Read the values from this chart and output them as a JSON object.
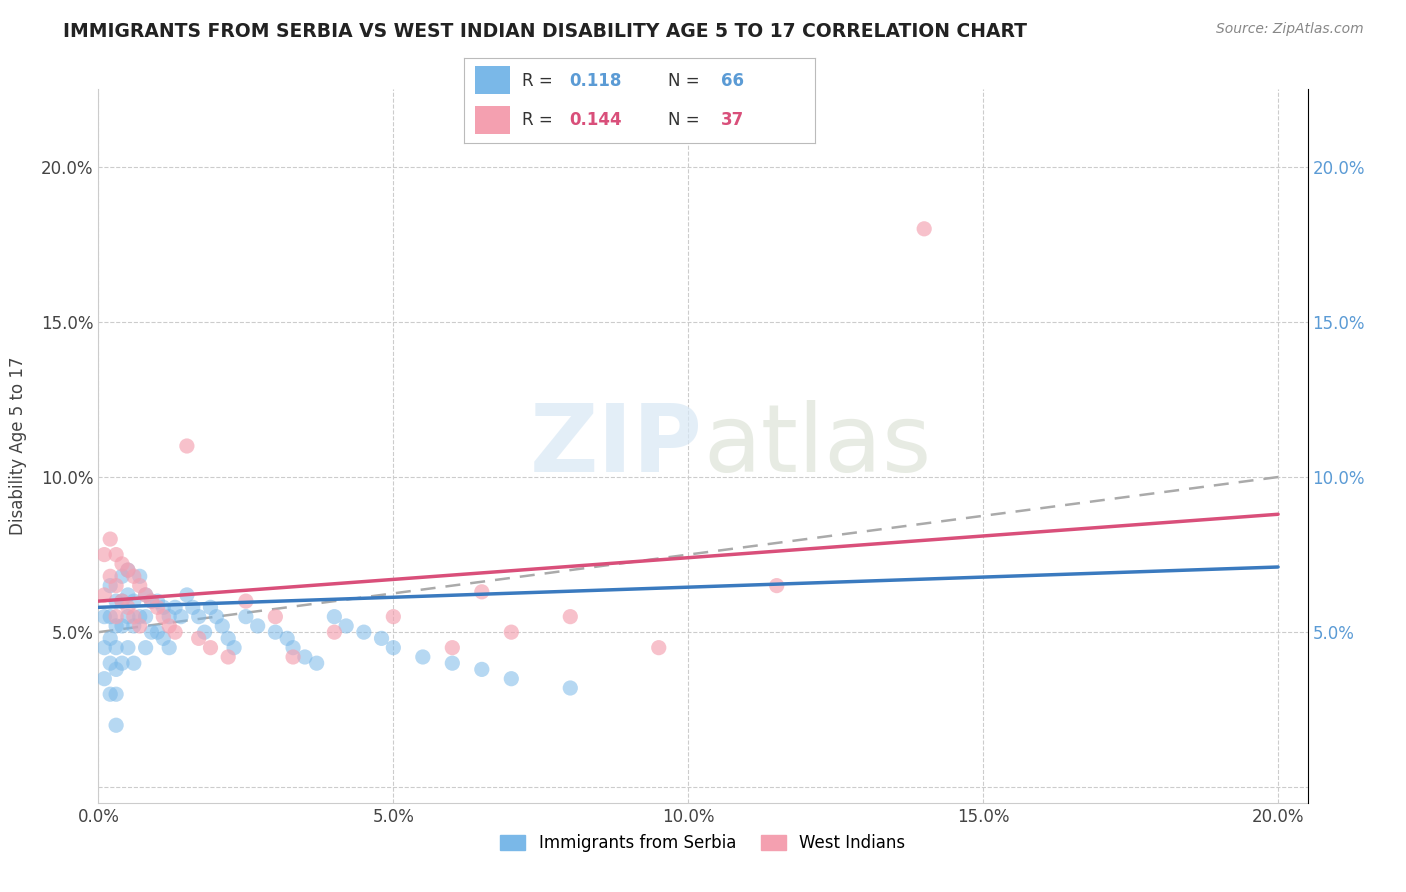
{
  "title": "IMMIGRANTS FROM SERBIA VS WEST INDIAN DISABILITY AGE 5 TO 17 CORRELATION CHART",
  "source": "Source: ZipAtlas.com",
  "ylabel": "Disability Age 5 to 17",
  "xlim": [
    0.0,
    0.205
  ],
  "ylim": [
    -0.005,
    0.225
  ],
  "xticks": [
    0.0,
    0.05,
    0.1,
    0.15,
    0.2
  ],
  "xticklabels": [
    "0.0%",
    "5.0%",
    "10.0%",
    "15.0%",
    "20.0%"
  ],
  "yticks": [
    0.0,
    0.05,
    0.1,
    0.15,
    0.2
  ],
  "yticklabels_left": [
    "",
    "5.0%",
    "10.0%",
    "15.0%",
    "20.0%"
  ],
  "yticklabels_right": [
    "",
    "5.0%",
    "10.0%",
    "15.0%",
    "20.0%"
  ],
  "serbia_color": "#7ab8e8",
  "westindian_color": "#f4a0b0",
  "serbia_line_color": "#3a7abf",
  "westindian_line_color": "#d94f7a",
  "gray_dash_color": "#aaaaaa",
  "serbia_R": 0.118,
  "serbia_N": 66,
  "westindian_R": 0.144,
  "westindian_N": 37,
  "serbia_trend": [
    0.0,
    0.2,
    0.058,
    0.071
  ],
  "westindian_trend": [
    0.0,
    0.2,
    0.06,
    0.088
  ],
  "gray_trend": [
    0.0,
    0.2,
    0.05,
    0.1
  ],
  "serbia_x": [
    0.001,
    0.001,
    0.001,
    0.002,
    0.002,
    0.002,
    0.002,
    0.002,
    0.003,
    0.003,
    0.003,
    0.003,
    0.003,
    0.003,
    0.004,
    0.004,
    0.004,
    0.004,
    0.005,
    0.005,
    0.005,
    0.005,
    0.006,
    0.006,
    0.006,
    0.007,
    0.007,
    0.008,
    0.008,
    0.008,
    0.009,
    0.009,
    0.01,
    0.01,
    0.011,
    0.011,
    0.012,
    0.012,
    0.013,
    0.014,
    0.015,
    0.016,
    0.017,
    0.018,
    0.019,
    0.02,
    0.021,
    0.022,
    0.023,
    0.025,
    0.027,
    0.03,
    0.032,
    0.033,
    0.035,
    0.037,
    0.04,
    0.042,
    0.045,
    0.048,
    0.05,
    0.055,
    0.06,
    0.065,
    0.07,
    0.08
  ],
  "serbia_y": [
    0.055,
    0.045,
    0.035,
    0.065,
    0.055,
    0.048,
    0.04,
    0.03,
    0.06,
    0.052,
    0.045,
    0.038,
    0.03,
    0.02,
    0.068,
    0.06,
    0.052,
    0.04,
    0.07,
    0.062,
    0.055,
    0.045,
    0.06,
    0.052,
    0.04,
    0.068,
    0.055,
    0.062,
    0.055,
    0.045,
    0.06,
    0.05,
    0.06,
    0.05,
    0.058,
    0.048,
    0.055,
    0.045,
    0.058,
    0.055,
    0.062,
    0.058,
    0.055,
    0.05,
    0.058,
    0.055,
    0.052,
    0.048,
    0.045,
    0.055,
    0.052,
    0.05,
    0.048,
    0.045,
    0.042,
    0.04,
    0.055,
    0.052,
    0.05,
    0.048,
    0.045,
    0.042,
    0.04,
    0.038,
    0.035,
    0.032
  ],
  "westindian_x": [
    0.001,
    0.001,
    0.002,
    0.002,
    0.003,
    0.003,
    0.003,
    0.004,
    0.004,
    0.005,
    0.005,
    0.006,
    0.006,
    0.007,
    0.007,
    0.008,
    0.009,
    0.01,
    0.011,
    0.012,
    0.013,
    0.015,
    0.017,
    0.019,
    0.022,
    0.025,
    0.03,
    0.033,
    0.04,
    0.05,
    0.06,
    0.065,
    0.07,
    0.08,
    0.095,
    0.115,
    0.14
  ],
  "westindian_y": [
    0.075,
    0.062,
    0.08,
    0.068,
    0.075,
    0.065,
    0.055,
    0.072,
    0.06,
    0.07,
    0.058,
    0.068,
    0.055,
    0.065,
    0.052,
    0.062,
    0.06,
    0.058,
    0.055,
    0.052,
    0.05,
    0.11,
    0.048,
    0.045,
    0.042,
    0.06,
    0.055,
    0.042,
    0.05,
    0.055,
    0.045,
    0.063,
    0.05,
    0.055,
    0.045,
    0.065,
    0.18
  ]
}
